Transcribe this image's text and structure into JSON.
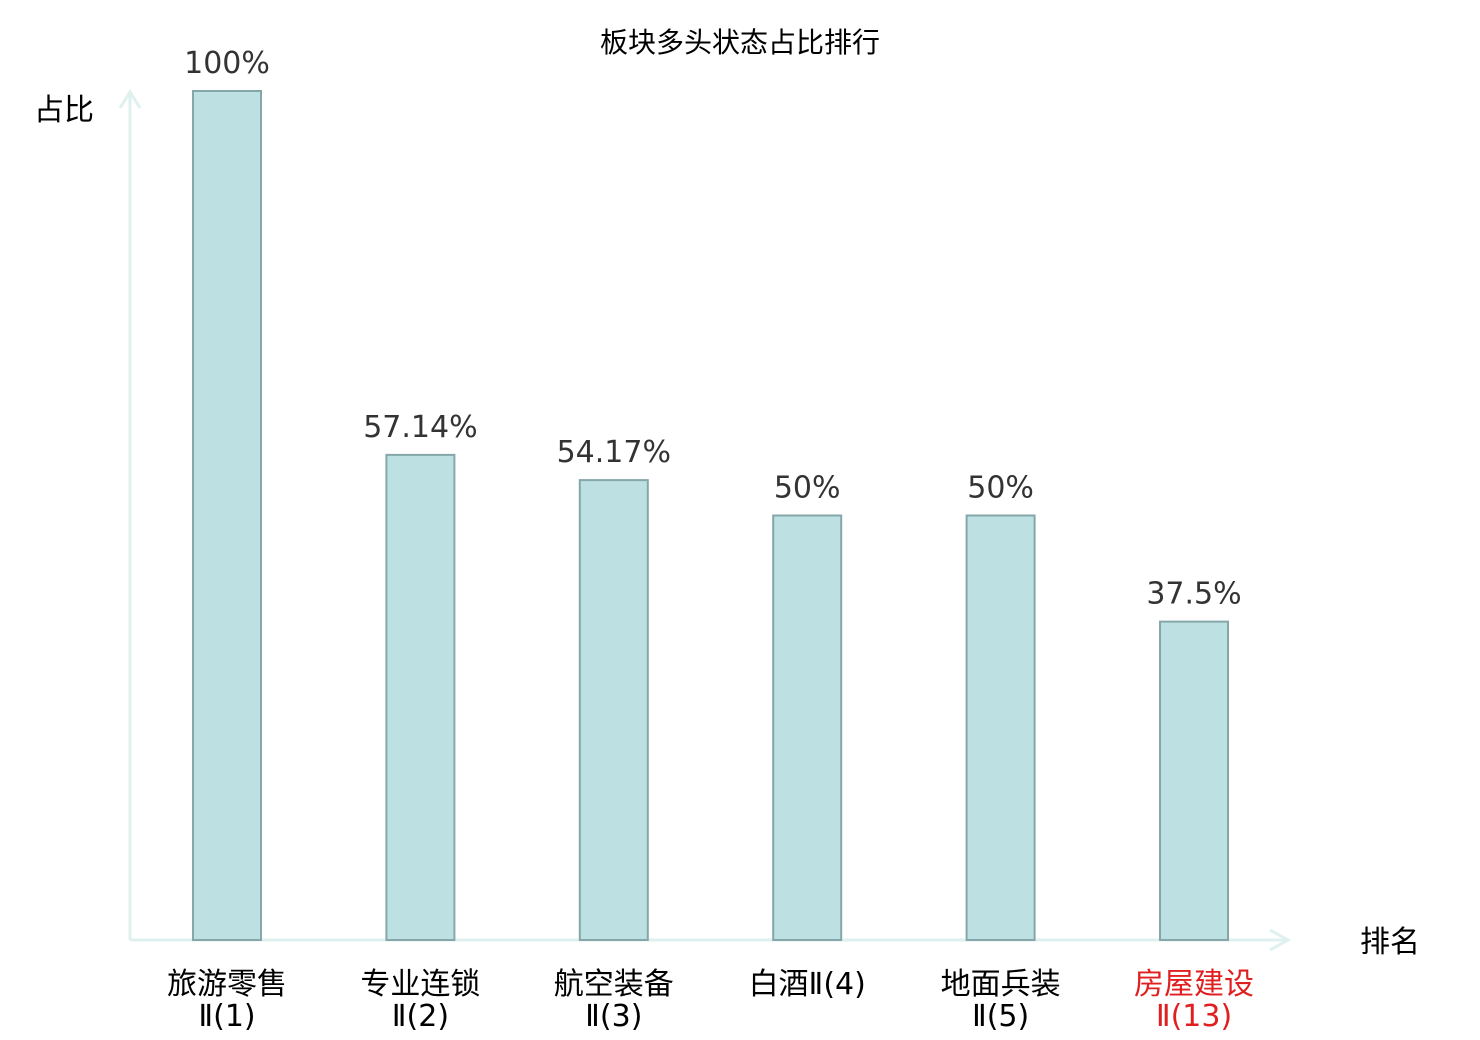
{
  "colors": {
    "bar_fill": "#bde0e2",
    "bar_stroke": "#86a7aa",
    "axis": "#dff1ee",
    "text": "#000000",
    "value_text": "#333333",
    "highlight": "#e02020"
  },
  "chart_data": {
    "type": "bar",
    "title": "板块多头状态占比排行",
    "xlabel": "排名",
    "ylabel": "占比",
    "ylim": [
      0,
      100
    ],
    "grid": false,
    "categories": [
      {
        "name": "旅游零售",
        "sub": "Ⅱ(1)",
        "highlight": false
      },
      {
        "name": "专业连锁",
        "sub": "Ⅱ(2)",
        "highlight": false
      },
      {
        "name": "航空装备",
        "sub": "Ⅱ(3)",
        "highlight": false
      },
      {
        "name": "白酒Ⅱ(4)",
        "sub": "",
        "highlight": false
      },
      {
        "name": "地面兵装",
        "sub": "Ⅱ(5)",
        "highlight": false
      },
      {
        "name": "房屋建设",
        "sub": "Ⅱ(13)",
        "highlight": true
      }
    ],
    "values": [
      100,
      57.14,
      54.17,
      50,
      50,
      37.5
    ],
    "value_labels": [
      "100%",
      "57.14%",
      "54.17%",
      "50%",
      "50%",
      "37.5%"
    ]
  }
}
